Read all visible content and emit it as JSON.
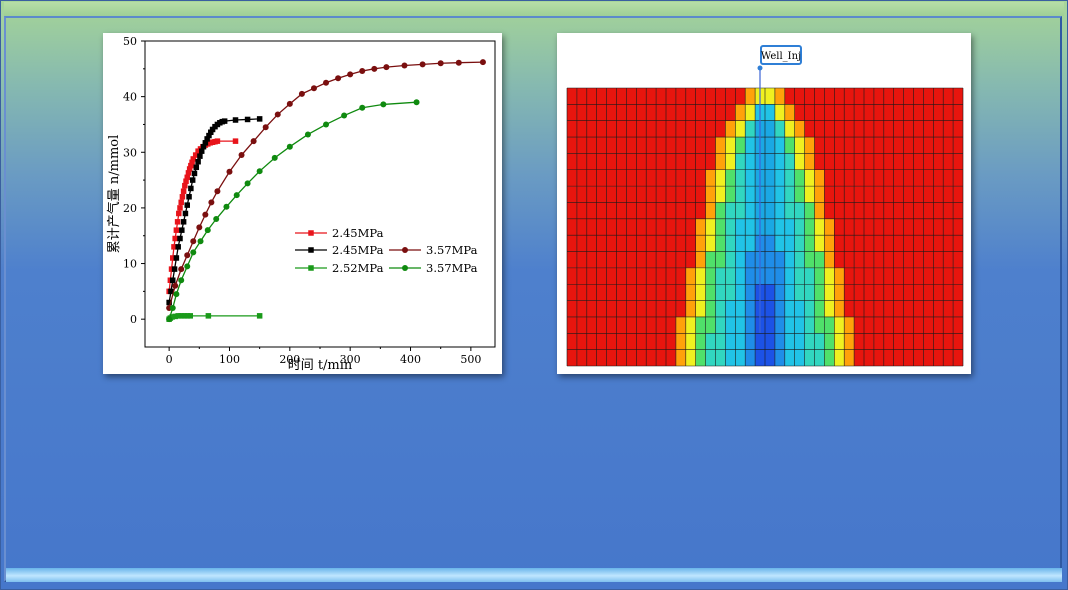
{
  "colors": {
    "series_red": "#e8141b",
    "series_black": "#000000",
    "series_darkred": "#7a0f0f",
    "series_green_sq": "#1a9a1a",
    "series_green_ci": "#0f8a0f",
    "sim_background": "#e8150e",
    "well_label_border": "#2f7fd6"
  },
  "chart_data": {
    "type": "line",
    "xlabel": "时间 t/min",
    "ylabel": "累计产气量 n/mmol",
    "xlim": [
      -40,
      540
    ],
    "ylim": [
      -5,
      50
    ],
    "x_ticks": [
      "0",
      "100",
      "200",
      "300",
      "400",
      "500"
    ],
    "y_ticks": [
      "0",
      "10",
      "20",
      "30",
      "40",
      "50"
    ],
    "grid": false,
    "legend_position": "center-right",
    "series": [
      {
        "name": "2.45MPa",
        "marker": "square",
        "color": "#e8141b",
        "x": [
          0,
          2,
          4,
          6,
          8,
          10,
          12,
          14,
          16,
          18,
          20,
          22,
          24,
          26,
          28,
          30,
          32,
          34,
          36,
          38,
          40,
          44,
          48,
          52,
          56,
          60,
          64,
          68,
          72,
          76,
          80,
          110
        ],
        "y": [
          5,
          7,
          9,
          11,
          13,
          14.5,
          16,
          17.5,
          19,
          20,
          21,
          22,
          23,
          24,
          24.8,
          25.5,
          26.3,
          27,
          27.6,
          28.2,
          28.8,
          29.5,
          30.2,
          30.6,
          31,
          31.3,
          31.5,
          31.7,
          31.8,
          31.9,
          32,
          32
        ]
      },
      {
        "name": "2.45MPa",
        "marker": "square",
        "color": "#000000",
        "x": [
          0,
          3,
          6,
          9,
          12,
          15,
          18,
          21,
          24,
          27,
          30,
          33,
          36,
          39,
          42,
          45,
          48,
          51,
          54,
          57,
          60,
          63,
          66,
          69,
          72,
          76,
          80,
          84,
          88,
          92,
          110,
          130,
          150
        ],
        "y": [
          3,
          5,
          7,
          9,
          11,
          13,
          14.5,
          16,
          17.5,
          19,
          20.5,
          22,
          23.5,
          25,
          26.2,
          27.3,
          28.3,
          29.3,
          30.2,
          31,
          31.7,
          32.4,
          33,
          33.6,
          34.1,
          34.6,
          35,
          35.3,
          35.5,
          35.6,
          35.8,
          35.9,
          36
        ]
      },
      {
        "name": "3.57MPa",
        "marker": "circle",
        "color": "#7a0f0f",
        "x": [
          0,
          10,
          20,
          30,
          40,
          50,
          60,
          70,
          80,
          100,
          120,
          140,
          160,
          180,
          200,
          220,
          240,
          260,
          280,
          300,
          320,
          340,
          360,
          390,
          420,
          450,
          480,
          520
        ],
        "y": [
          2,
          6,
          9,
          11.5,
          14,
          16.5,
          18.8,
          21,
          23,
          26.5,
          29.5,
          32,
          34.5,
          36.8,
          38.7,
          40.5,
          41.5,
          42.5,
          43.3,
          44,
          44.6,
          45,
          45.3,
          45.6,
          45.8,
          46,
          46.1,
          46.2
        ]
      },
      {
        "name": "2.52MPa",
        "marker": "square",
        "color": "#1a9a1a",
        "x": [
          0,
          2,
          5,
          10,
          15,
          20,
          25,
          30,
          35,
          65,
          150
        ],
        "y": [
          0,
          0.2,
          0.4,
          0.5,
          0.6,
          0.6,
          0.6,
          0.6,
          0.6,
          0.6,
          0.6
        ]
      },
      {
        "name": "3.57MPa",
        "marker": "circle",
        "color": "#0f8a0f",
        "x": [
          0,
          6,
          12,
          20,
          30,
          40,
          52,
          64,
          78,
          95,
          112,
          130,
          150,
          175,
          200,
          230,
          260,
          290,
          320,
          355,
          410
        ],
        "y": [
          0,
          2,
          4.5,
          7,
          9.5,
          12,
          14,
          16,
          18,
          20.2,
          22.3,
          24.4,
          26.6,
          29,
          31,
          33.2,
          35,
          36.6,
          38,
          38.6,
          39
        ]
      }
    ]
  },
  "simulation": {
    "well_label": "Well_Inj",
    "grid_cols": 40,
    "grid_rows": 17
  }
}
